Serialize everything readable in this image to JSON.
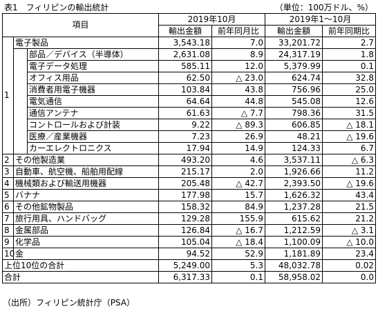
{
  "title": "表1　フィリピンの輸出統計",
  "unit": "（単位：100万ドル、%）",
  "footer": "（出所）フィリピン統計庁（PSA）",
  "header": {
    "item": "項目",
    "period1": "2019年10月",
    "period2": "2019年1～10月",
    "col_amount": "輸出金額",
    "col_yoy1": "前年同月比",
    "col_yoy2": "前年同期比"
  },
  "electronics": {
    "rank": "1",
    "name": "電子製品",
    "v1": "3,543.18",
    "y1": "7.0",
    "v2": "33,201.72",
    "y2": "2.7",
    "sub": [
      {
        "name": "部品／デバイス（半導体）",
        "v1": "2,631.08",
        "y1": "8.9",
        "v2": "24,317.19",
        "y2": "1.8"
      },
      {
        "name": "電子データ処理",
        "v1": "585.11",
        "y1": "12.0",
        "v2": "5,379.99",
        "y2": "0.1"
      },
      {
        "name": "オフィス用品",
        "v1": "62.50",
        "y1": "△ 23.0",
        "v2": "624.74",
        "y2": "32.8"
      },
      {
        "name": "消費者用電子機器",
        "v1": "103.84",
        "y1": "43.8",
        "v2": "756.96",
        "y2": "25.0"
      },
      {
        "name": "電気通信",
        "v1": "64.64",
        "y1": "44.8",
        "v2": "545.08",
        "y2": "12.6"
      },
      {
        "name": "通信アンテナ",
        "v1": "61.63",
        "y1": "△ 7.7",
        "v2": "798.36",
        "y2": "31.5"
      },
      {
        "name": "コントロールおよび計装",
        "v1": "9.22",
        "y1": "△ 89.3",
        "v2": "606.85",
        "y2": "△ 18.1"
      },
      {
        "name": "医療／産業機器",
        "v1": "7.23",
        "y1": "26.9",
        "v2": "48.21",
        "y2": "△ 19.6"
      },
      {
        "name": "カーエレクトロニクス",
        "v1": "17.94",
        "y1": "14.9",
        "v2": "124.33",
        "y2": "6.7"
      }
    ]
  },
  "rows": [
    {
      "rank": "2",
      "name": "その他製造業",
      "v1": "493.20",
      "y1": "4.6",
      "v2": "3,537.11",
      "y2": "△ 6.3"
    },
    {
      "rank": "3",
      "name": "自動車、航空機、船舶用配線",
      "v1": "215.17",
      "y1": "2.0",
      "v2": "1,926.66",
      "y2": "11.2"
    },
    {
      "rank": "4",
      "name": "機械類および輸送用機器",
      "v1": "205.48",
      "y1": "△ 42.7",
      "v2": "2,393.50",
      "y2": "△ 19.6"
    },
    {
      "rank": "5",
      "name": "バナナ",
      "v1": "177.98",
      "y1": "15.7",
      "v2": "1,626.32",
      "y2": "43.4"
    },
    {
      "rank": "6",
      "name": "その他鉱物製品",
      "v1": "158.32",
      "y1": "84.9",
      "v2": "1,237.28",
      "y2": "21.5"
    },
    {
      "rank": "7",
      "name": "旅行用具、ハンドバッグ",
      "v1": "129.28",
      "y1": "155.9",
      "v2": "615.62",
      "y2": "21.2"
    },
    {
      "rank": "8",
      "name": "金属部品",
      "v1": "126.84",
      "y1": "△ 16.7",
      "v2": "1,212.59",
      "y2": "△ 3.1"
    },
    {
      "rank": "9",
      "name": "化学品",
      "v1": "105.04",
      "y1": "△ 18.4",
      "v2": "1,100.09",
      "y2": "△ 10.0"
    },
    {
      "rank": "10",
      "name": "金",
      "v1": "94.52",
      "y1": "52.9",
      "v2": "1,181.89",
      "y2": "23.4"
    }
  ],
  "top10": {
    "name": "上位10位の合計",
    "v1": "5,249.00",
    "y1": "5.3",
    "v2": "48,032.78",
    "y2": "0.02"
  },
  "total": {
    "name": "合計",
    "v1": "6,317.33",
    "y1": "0.1",
    "v2": "58,958.02",
    "y2": "0.0"
  }
}
